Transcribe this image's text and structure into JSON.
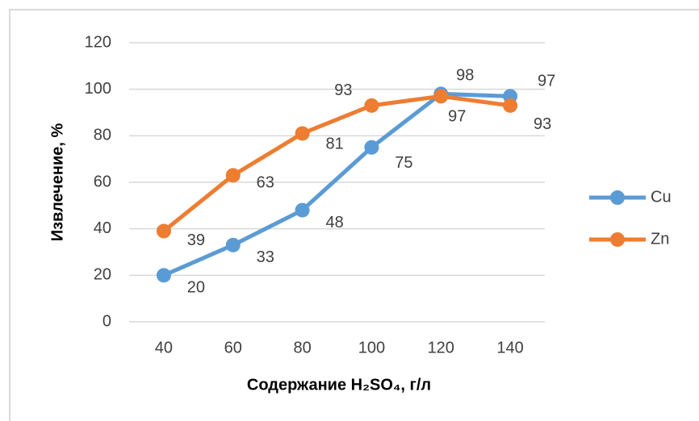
{
  "chart_data": {
    "type": "line",
    "xlabel": "Содержание H₂SO₄, г/л",
    "ylabel": "Извлечение, %",
    "categories": [
      "40",
      "60",
      "80",
      "100",
      "120",
      "140"
    ],
    "series": [
      {
        "name": "Cu",
        "color": "#5b9bd5",
        "values": [
          20,
          33,
          48,
          75,
          98,
          97
        ]
      },
      {
        "name": "Zn",
        "color": "#ed7d31",
        "values": [
          39,
          63,
          81,
          93,
          97,
          93
        ]
      }
    ],
    "ylim": [
      0,
      120
    ],
    "yticks": [
      0,
      20,
      40,
      60,
      80,
      100,
      120
    ],
    "grid": true,
    "legend": "right"
  }
}
